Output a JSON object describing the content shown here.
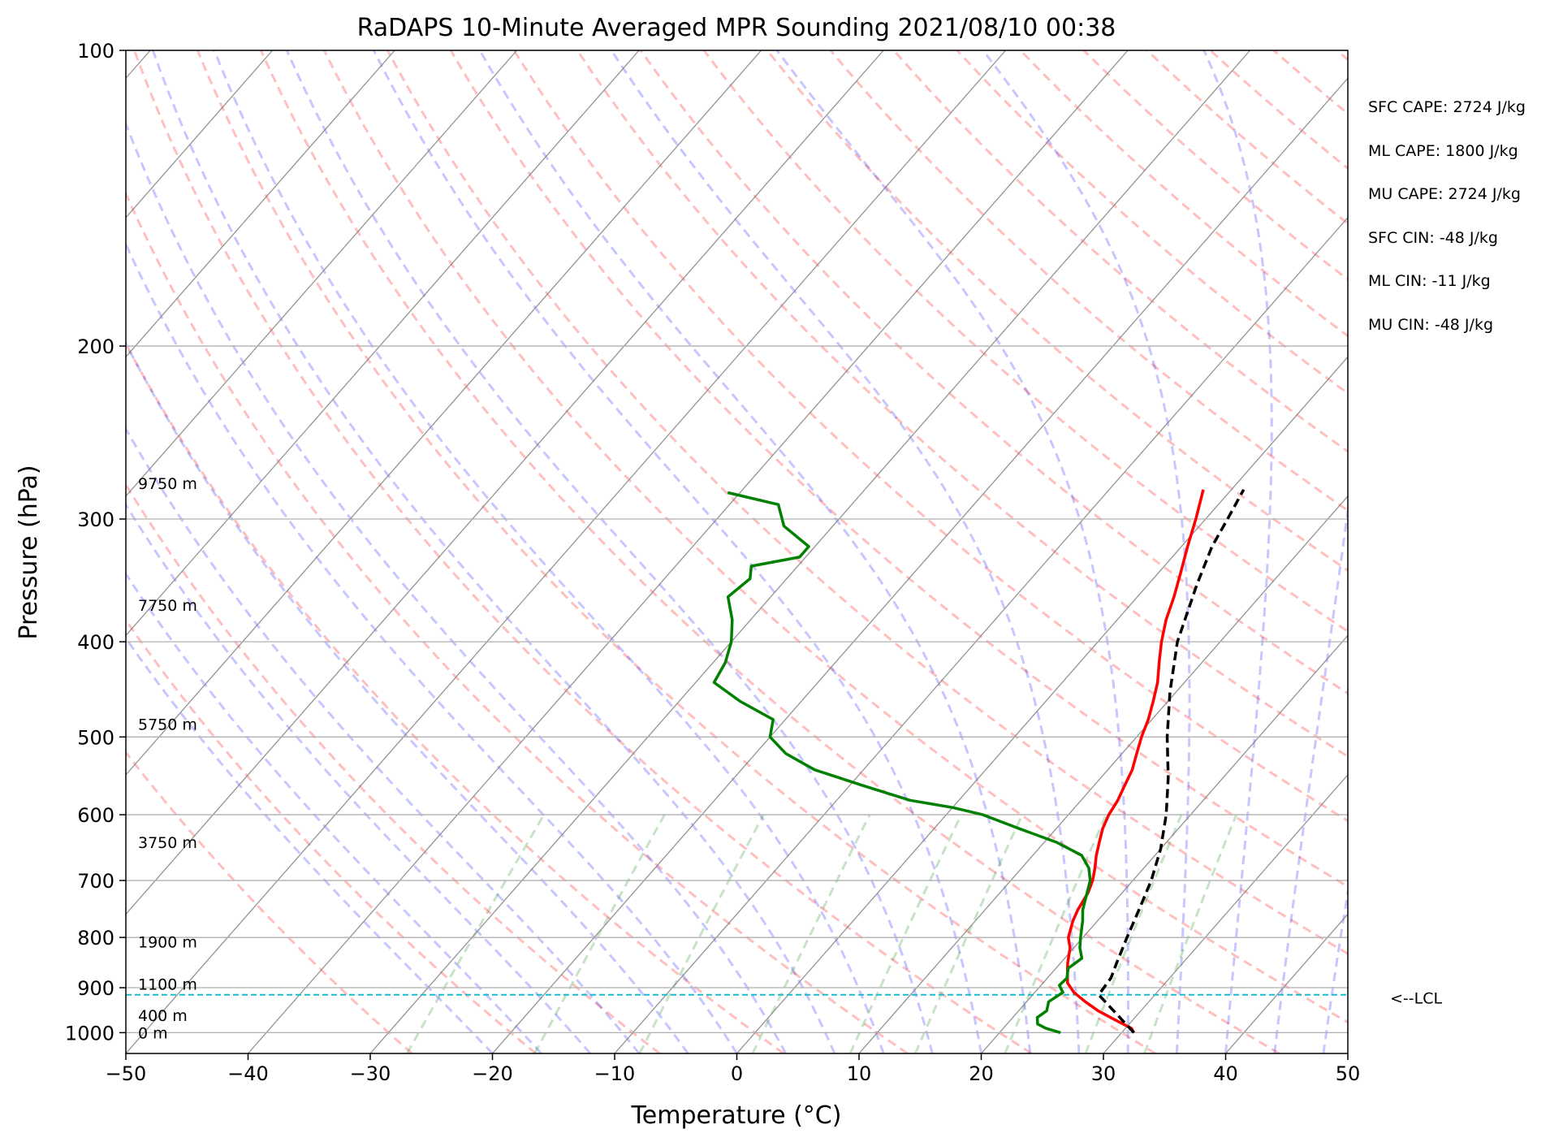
{
  "chart_data": {
    "type": "line",
    "title": "RaDAPS 10-Minute Averaged MPR Sounding 2021/08/10 00:38",
    "xlabel": "Temperature (°C)",
    "ylabel": "Pressure (hPa)",
    "xlim": [
      -50,
      50
    ],
    "ylim": [
      1050,
      100
    ],
    "y_scale": "log",
    "skewt": true,
    "grid": true,
    "x_ticks": [
      -50,
      -40,
      -30,
      -20,
      -10,
      0,
      10,
      20,
      30,
      40,
      50
    ],
    "x_tick_labels": [
      "−50",
      "−40",
      "−30",
      "−20",
      "−10",
      "0",
      "10",
      "20",
      "30",
      "40",
      "50"
    ],
    "y_ticks": [
      100,
      200,
      300,
      400,
      500,
      600,
      700,
      800,
      900,
      1000
    ],
    "y_tick_labels": [
      "100",
      "200",
      "300",
      "400",
      "500",
      "600",
      "700",
      "800",
      "900",
      "1000"
    ],
    "height_labels": [
      {
        "text": "9750 m",
        "p": 276
      },
      {
        "text": "7750 m",
        "p": 367
      },
      {
        "text": "5750 m",
        "p": 485
      },
      {
        "text": "3750 m",
        "p": 640
      },
      {
        "text": "1900 m",
        "p": 808
      },
      {
        "text": "1100 m",
        "p": 892
      },
      {
        "text": "400 m",
        "p": 960
      },
      {
        "text": "0 m",
        "p": 1000
      }
    ],
    "lcl": {
      "p": 915,
      "label": "<--LCL",
      "color": "#17becf"
    },
    "series": [
      {
        "key": "temperature",
        "color": "#ff0000",
        "points": [
          [
            1000,
            31.0
          ],
          [
            990,
            30.5
          ],
          [
            970,
            28.5
          ],
          [
            950,
            26.5
          ],
          [
            930,
            24.8
          ],
          [
            910,
            23.2
          ],
          [
            890,
            22.0
          ],
          [
            870,
            21.3
          ],
          [
            850,
            20.6
          ],
          [
            820,
            19.7
          ],
          [
            800,
            18.8
          ],
          [
            770,
            18.0
          ],
          [
            750,
            17.6
          ],
          [
            720,
            17.2
          ],
          [
            700,
            16.7
          ],
          [
            680,
            16.0
          ],
          [
            660,
            15.2
          ],
          [
            640,
            14.5
          ],
          [
            620,
            13.8
          ],
          [
            600,
            13.3
          ],
          [
            580,
            13.0
          ],
          [
            560,
            12.5
          ],
          [
            540,
            12.0
          ],
          [
            520,
            11.2
          ],
          [
            500,
            10.4
          ],
          [
            480,
            9.7
          ],
          [
            460,
            8.8
          ],
          [
            440,
            7.8
          ],
          [
            420,
            6.5
          ],
          [
            400,
            5.2
          ],
          [
            380,
            4.0
          ],
          [
            360,
            3.0
          ],
          [
            340,
            1.8
          ],
          [
            320,
            0.5
          ],
          [
            300,
            -0.8
          ],
          [
            280,
            -2.3
          ]
        ]
      },
      {
        "key": "dewpoint",
        "color": "#008000",
        "points": [
          [
            1000,
            25.0
          ],
          [
            990,
            23.5
          ],
          [
            980,
            22.5
          ],
          [
            965,
            22.0
          ],
          [
            950,
            22.3
          ],
          [
            930,
            21.8
          ],
          [
            910,
            22.3
          ],
          [
            895,
            21.5
          ],
          [
            880,
            21.6
          ],
          [
            860,
            21.0
          ],
          [
            840,
            21.4
          ],
          [
            820,
            20.5
          ],
          [
            800,
            19.8
          ],
          [
            770,
            18.8
          ],
          [
            750,
            18.0
          ],
          [
            700,
            16.5
          ],
          [
            680,
            15.5
          ],
          [
            660,
            14.0
          ],
          [
            640,
            11.0
          ],
          [
            620,
            7.0
          ],
          [
            600,
            3.0
          ],
          [
            590,
            0.0
          ],
          [
            580,
            -4.0
          ],
          [
            560,
            -9.0
          ],
          [
            540,
            -14.0
          ],
          [
            520,
            -17.5
          ],
          [
            500,
            -20.0
          ],
          [
            480,
            -21.0
          ],
          [
            460,
            -25.0
          ],
          [
            440,
            -28.5
          ],
          [
            420,
            -29.0
          ],
          [
            400,
            -30.0
          ],
          [
            380,
            -31.5
          ],
          [
            360,
            -33.5
          ],
          [
            345,
            -33.0
          ],
          [
            335,
            -33.8
          ],
          [
            328,
            -30.5
          ],
          [
            320,
            -30.5
          ],
          [
            305,
            -34.0
          ],
          [
            290,
            -36.0
          ],
          [
            282,
            -41.0
          ]
        ]
      },
      {
        "key": "parcel",
        "color": "#000000",
        "dash": "11,6",
        "points": [
          [
            1000,
            31.0
          ],
          [
            915,
            25.4
          ],
          [
            880,
            25.2
          ],
          [
            850,
            24.6
          ],
          [
            800,
            23.6
          ],
          [
            750,
            22.6
          ],
          [
            700,
            21.5
          ],
          [
            650,
            20.0
          ],
          [
            600,
            18.0
          ],
          [
            550,
            15.5
          ],
          [
            500,
            12.5
          ],
          [
            450,
            9.5
          ],
          [
            400,
            6.5
          ],
          [
            350,
            4.0
          ],
          [
            320,
            2.5
          ],
          [
            300,
            1.8
          ],
          [
            280,
            1.0
          ]
        ]
      }
    ],
    "sidebar_stats": [
      "SFC CAPE: 2724 J/kg",
      "ML CAPE: 1800 J/kg",
      "MU CAPE: 2724 J/kg",
      "SFC CIN: -48 J/kg",
      "ML CIN: -11 J/kg",
      "MU CIN: -48 J/kg"
    ],
    "background_lines": {
      "dry_adiabat_color": "#ff0000",
      "moist_adiabat_color": "#0000ff",
      "mixing_ratio_color": "#008000",
      "isotherm_color": "#808080"
    }
  }
}
